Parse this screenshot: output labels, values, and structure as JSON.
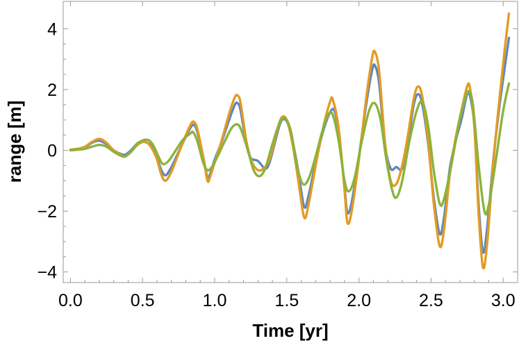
{
  "chart_data": {
    "type": "line",
    "title": "",
    "xlabel": "Time [yr]",
    "ylabel": "range [m]",
    "xlim": [
      -0.05,
      3.1
    ],
    "ylim": [
      -4.35,
      4.9
    ],
    "x_ticks": [
      0.0,
      0.5,
      1.0,
      1.5,
      2.0,
      2.5,
      3.0
    ],
    "x_tick_labels": [
      "0.0",
      "0.5",
      "1.0",
      "1.5",
      "2.0",
      "2.5",
      "3.0"
    ],
    "y_ticks": [
      -4,
      -2,
      0,
      2,
      4
    ],
    "y_tick_labels": [
      "−4",
      "−2",
      "0",
      "2",
      "4"
    ],
    "grid": false,
    "legend": "none",
    "series": [
      {
        "color": "#5f87bd",
        "points": [
          [
            0.0,
            0.02
          ],
          [
            0.05,
            0.05
          ],
          [
            0.1,
            0.1
          ],
          [
            0.15,
            0.25
          ],
          [
            0.2,
            0.32
          ],
          [
            0.25,
            0.2
          ],
          [
            0.3,
            0.0
          ],
          [
            0.35,
            -0.12
          ],
          [
            0.38,
            -0.14
          ],
          [
            0.42,
            0.0
          ],
          [
            0.47,
            0.25
          ],
          [
            0.52,
            0.27
          ],
          [
            0.56,
            0.15
          ],
          [
            0.6,
            -0.25
          ],
          [
            0.63,
            -0.65
          ],
          [
            0.66,
            -0.82
          ],
          [
            0.7,
            -0.55
          ],
          [
            0.75,
            -0.05
          ],
          [
            0.8,
            0.45
          ],
          [
            0.84,
            0.8
          ],
          [
            0.86,
            0.82
          ],
          [
            0.88,
            0.6
          ],
          [
            0.92,
            -0.2
          ],
          [
            0.95,
            -0.9
          ],
          [
            0.97,
            -0.75
          ],
          [
            1.0,
            -0.3
          ],
          [
            1.05,
            0.3
          ],
          [
            1.1,
            1.0
          ],
          [
            1.14,
            1.5
          ],
          [
            1.16,
            1.55
          ],
          [
            1.18,
            1.3
          ],
          [
            1.22,
            0.2
          ],
          [
            1.25,
            -0.25
          ],
          [
            1.3,
            -0.35
          ],
          [
            1.35,
            -0.6
          ],
          [
            1.38,
            -0.4
          ],
          [
            1.42,
            0.3
          ],
          [
            1.46,
            0.95
          ],
          [
            1.5,
            0.95
          ],
          [
            1.54,
            0.3
          ],
          [
            1.58,
            -0.7
          ],
          [
            1.62,
            -1.85
          ],
          [
            1.65,
            -1.5
          ],
          [
            1.7,
            -0.4
          ],
          [
            1.75,
            0.6
          ],
          [
            1.8,
            1.25
          ],
          [
            1.83,
            1.3
          ],
          [
            1.86,
            0.6
          ],
          [
            1.9,
            -1.2
          ],
          [
            1.92,
            -2.05
          ],
          [
            1.95,
            -1.7
          ],
          [
            2.0,
            -0.2
          ],
          [
            2.05,
            1.5
          ],
          [
            2.09,
            2.6
          ],
          [
            2.11,
            2.8
          ],
          [
            2.14,
            2.2
          ],
          [
            2.18,
            0.2
          ],
          [
            2.22,
            -0.6
          ],
          [
            2.26,
            -0.55
          ],
          [
            2.3,
            -0.6
          ],
          [
            2.34,
            0.3
          ],
          [
            2.38,
            1.5
          ],
          [
            2.41,
            1.85
          ],
          [
            2.44,
            1.5
          ],
          [
            2.48,
            0.2
          ],
          [
            2.52,
            -1.6
          ],
          [
            2.56,
            -2.75
          ],
          [
            2.59,
            -2.2
          ],
          [
            2.63,
            -0.6
          ],
          [
            2.67,
            0.3
          ],
          [
            2.71,
            1.0
          ],
          [
            2.75,
            1.85
          ],
          [
            2.77,
            1.8
          ],
          [
            2.8,
            0.8
          ],
          [
            2.83,
            -1.8
          ],
          [
            2.86,
            -3.35
          ],
          [
            2.89,
            -2.5
          ],
          [
            2.93,
            -0.4
          ],
          [
            2.97,
            1.3
          ],
          [
            3.01,
            2.7
          ],
          [
            3.04,
            3.7
          ]
        ]
      },
      {
        "color": "#e19c24",
        "points": [
          [
            0.0,
            0.02
          ],
          [
            0.05,
            0.05
          ],
          [
            0.1,
            0.12
          ],
          [
            0.15,
            0.28
          ],
          [
            0.2,
            0.38
          ],
          [
            0.25,
            0.25
          ],
          [
            0.3,
            0.0
          ],
          [
            0.35,
            -0.15
          ],
          [
            0.38,
            -0.2
          ],
          [
            0.42,
            -0.05
          ],
          [
            0.47,
            0.2
          ],
          [
            0.52,
            0.28
          ],
          [
            0.56,
            0.1
          ],
          [
            0.6,
            -0.3
          ],
          [
            0.63,
            -0.8
          ],
          [
            0.66,
            -1.0
          ],
          [
            0.7,
            -0.7
          ],
          [
            0.75,
            -0.1
          ],
          [
            0.8,
            0.5
          ],
          [
            0.84,
            0.9
          ],
          [
            0.86,
            0.92
          ],
          [
            0.88,
            0.7
          ],
          [
            0.92,
            -0.2
          ],
          [
            0.95,
            -1.0
          ],
          [
            0.97,
            -0.85
          ],
          [
            1.0,
            -0.4
          ],
          [
            1.05,
            0.35
          ],
          [
            1.1,
            1.2
          ],
          [
            1.14,
            1.75
          ],
          [
            1.16,
            1.8
          ],
          [
            1.18,
            1.55
          ],
          [
            1.22,
            0.3
          ],
          [
            1.26,
            -0.4
          ],
          [
            1.3,
            -0.65
          ],
          [
            1.34,
            -0.6
          ],
          [
            1.38,
            -0.3
          ],
          [
            1.42,
            0.4
          ],
          [
            1.46,
            1.05
          ],
          [
            1.5,
            1.0
          ],
          [
            1.54,
            0.2
          ],
          [
            1.58,
            -1.0
          ],
          [
            1.62,
            -2.2
          ],
          [
            1.65,
            -1.8
          ],
          [
            1.7,
            -0.5
          ],
          [
            1.75,
            0.7
          ],
          [
            1.8,
            1.6
          ],
          [
            1.82,
            1.65
          ],
          [
            1.86,
            0.7
          ],
          [
            1.9,
            -1.3
          ],
          [
            1.92,
            -2.38
          ],
          [
            1.95,
            -2.0
          ],
          [
            2.0,
            -0.3
          ],
          [
            2.05,
            1.7
          ],
          [
            2.09,
            3.0
          ],
          [
            2.11,
            3.25
          ],
          [
            2.14,
            2.6
          ],
          [
            2.18,
            0.3
          ],
          [
            2.22,
            -1.0
          ],
          [
            2.26,
            -1.1
          ],
          [
            2.3,
            -0.5
          ],
          [
            2.34,
            0.5
          ],
          [
            2.38,
            1.7
          ],
          [
            2.41,
            2.1
          ],
          [
            2.44,
            1.75
          ],
          [
            2.48,
            0.3
          ],
          [
            2.52,
            -1.8
          ],
          [
            2.56,
            -3.15
          ],
          [
            2.59,
            -2.6
          ],
          [
            2.63,
            -0.8
          ],
          [
            2.67,
            0.4
          ],
          [
            2.71,
            1.3
          ],
          [
            2.75,
            2.1
          ],
          [
            2.77,
            2.05
          ],
          [
            2.8,
            0.8
          ],
          [
            2.83,
            -2.1
          ],
          [
            2.86,
            -3.85
          ],
          [
            2.89,
            -3.0
          ],
          [
            2.93,
            -0.5
          ],
          [
            2.97,
            1.5
          ],
          [
            3.01,
            3.3
          ],
          [
            3.04,
            4.5
          ]
        ]
      },
      {
        "color": "#8bb33b",
        "points": [
          [
            0.0,
            0.0
          ],
          [
            0.05,
            0.02
          ],
          [
            0.1,
            0.05
          ],
          [
            0.15,
            0.12
          ],
          [
            0.2,
            0.18
          ],
          [
            0.25,
            0.12
          ],
          [
            0.3,
            -0.05
          ],
          [
            0.35,
            -0.18
          ],
          [
            0.38,
            -0.2
          ],
          [
            0.42,
            -0.05
          ],
          [
            0.47,
            0.25
          ],
          [
            0.53,
            0.35
          ],
          [
            0.57,
            0.2
          ],
          [
            0.61,
            -0.2
          ],
          [
            0.64,
            -0.45
          ],
          [
            0.68,
            -0.35
          ],
          [
            0.73,
            0.0
          ],
          [
            0.78,
            0.35
          ],
          [
            0.83,
            0.55
          ],
          [
            0.85,
            0.6
          ],
          [
            0.88,
            0.3
          ],
          [
            0.92,
            -0.4
          ],
          [
            0.95,
            -0.65
          ],
          [
            0.98,
            -0.55
          ],
          [
            1.02,
            -0.2
          ],
          [
            1.07,
            0.3
          ],
          [
            1.12,
            0.75
          ],
          [
            1.16,
            0.85
          ],
          [
            1.19,
            0.6
          ],
          [
            1.23,
            0.0
          ],
          [
            1.27,
            -0.65
          ],
          [
            1.31,
            -0.85
          ],
          [
            1.35,
            -0.6
          ],
          [
            1.4,
            0.2
          ],
          [
            1.45,
            0.9
          ],
          [
            1.49,
            1.05
          ],
          [
            1.53,
            0.6
          ],
          [
            1.57,
            -0.5
          ],
          [
            1.61,
            -1.1
          ],
          [
            1.65,
            -0.95
          ],
          [
            1.7,
            -0.2
          ],
          [
            1.75,
            0.7
          ],
          [
            1.79,
            1.2
          ],
          [
            1.82,
            1.15
          ],
          [
            1.86,
            0.3
          ],
          [
            1.9,
            -1.0
          ],
          [
            1.93,
            -1.35
          ],
          [
            1.97,
            -0.9
          ],
          [
            2.02,
            0.3
          ],
          [
            2.07,
            1.3
          ],
          [
            2.11,
            1.55
          ],
          [
            2.15,
            1.0
          ],
          [
            2.19,
            -0.3
          ],
          [
            2.23,
            -1.3
          ],
          [
            2.26,
            -1.55
          ],
          [
            2.3,
            -1.0
          ],
          [
            2.35,
            0.3
          ],
          [
            2.4,
            1.3
          ],
          [
            2.44,
            1.6
          ],
          [
            2.48,
            0.8
          ],
          [
            2.52,
            -0.7
          ],
          [
            2.56,
            -1.75
          ],
          [
            2.59,
            -1.6
          ],
          [
            2.64,
            -0.5
          ],
          [
            2.69,
            0.8
          ],
          [
            2.73,
            1.6
          ],
          [
            2.76,
            1.95
          ],
          [
            2.79,
            1.5
          ],
          [
            2.83,
            -0.5
          ],
          [
            2.87,
            -2.0
          ],
          [
            2.9,
            -1.8
          ],
          [
            2.95,
            -0.3
          ],
          [
            3.0,
            1.3
          ],
          [
            3.04,
            2.2
          ]
        ]
      }
    ]
  }
}
